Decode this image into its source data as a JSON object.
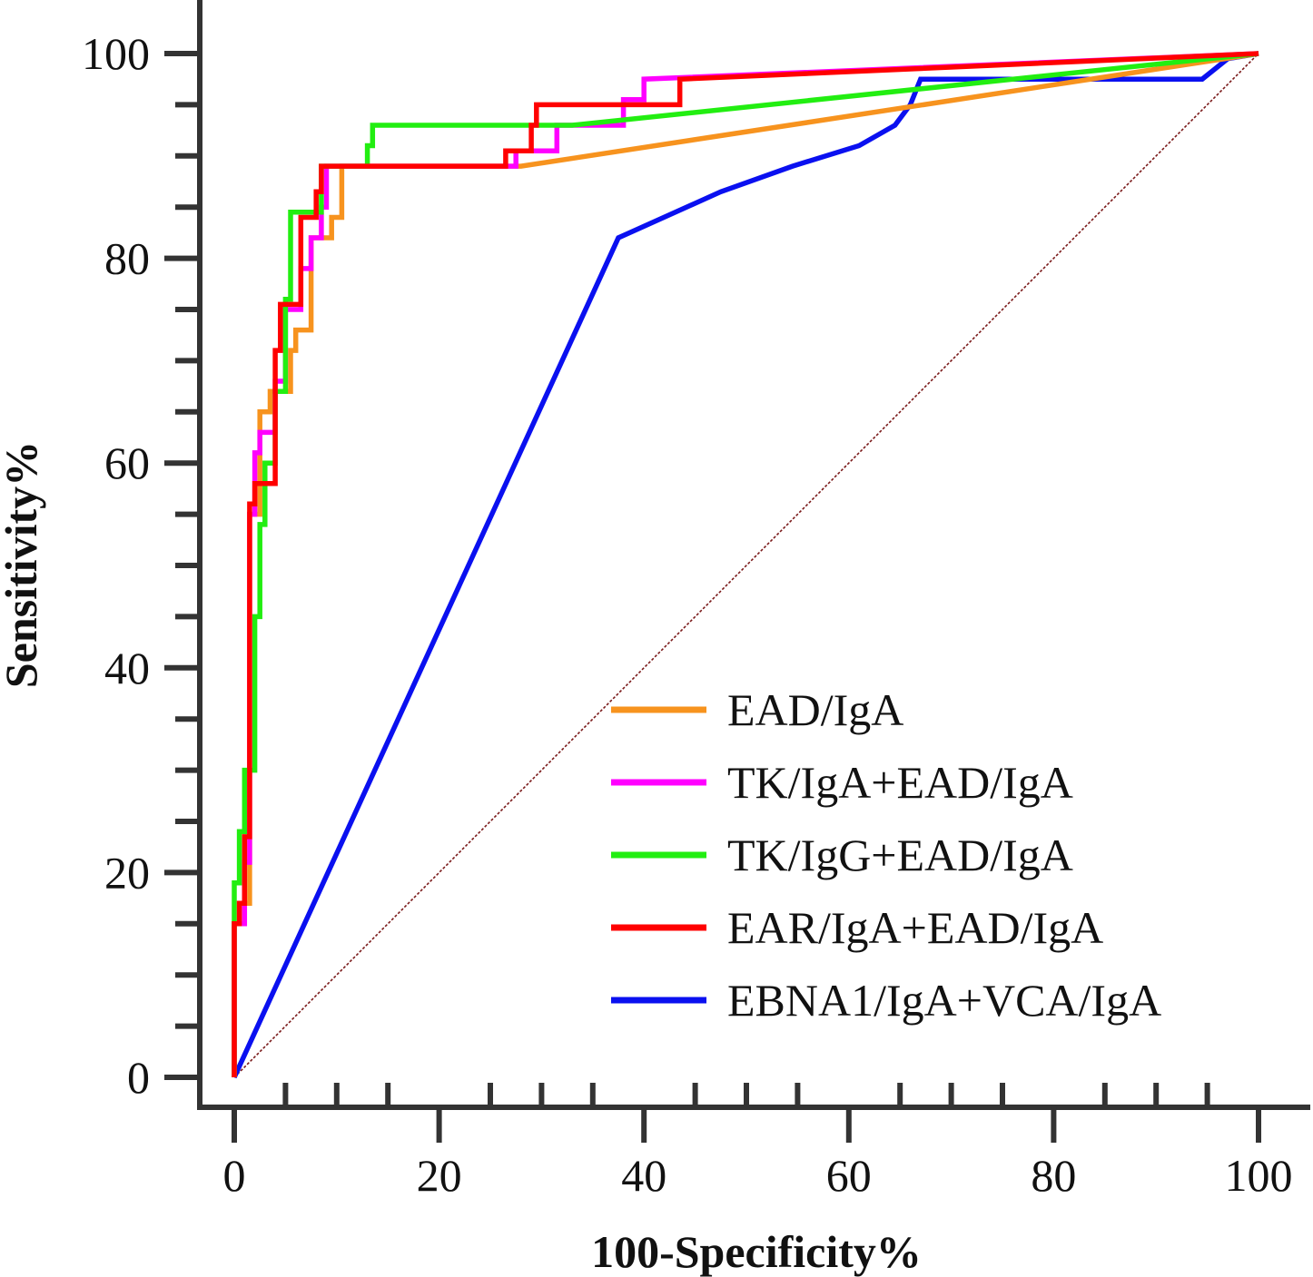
{
  "chart_data": {
    "type": "line",
    "title": "",
    "xlabel": "100-Specificity%",
    "ylabel": "Sensitivity%",
    "xlim": [
      0,
      100
    ],
    "ylim": [
      0,
      100
    ],
    "x_ticks": [
      0,
      20,
      40,
      60,
      80,
      100
    ],
    "y_ticks": [
      0,
      20,
      40,
      60,
      80,
      100
    ],
    "x_tick_labels": [
      "0",
      "20",
      "40",
      "60",
      "80",
      "100"
    ],
    "y_tick_labels": [
      "0",
      "20",
      "40",
      "60",
      "80",
      "100"
    ],
    "grid": false,
    "legend_position": "bottom-right",
    "reference_line": {
      "color": "#7a1a1a",
      "x": [
        0,
        100
      ],
      "y": [
        0,
        100
      ]
    },
    "series": [
      {
        "name": "EAD/IgA",
        "color": "#f7931e",
        "x": [
          0,
          0,
          0.5,
          0.5,
          1.5,
          1.5,
          2.5,
          2.5,
          3.5,
          3.5,
          5.5,
          5.5,
          6,
          6,
          7.5,
          7.5,
          9.5,
          9.5,
          10.5,
          10.5,
          28,
          100
        ],
        "y": [
          0,
          15,
          15,
          17,
          17,
          55,
          55,
          65,
          65,
          67,
          67,
          71,
          71,
          73,
          73,
          82,
          82,
          84,
          84,
          89,
          89,
          100
        ]
      },
      {
        "name": "TK/IgA+EAD/IgA",
        "color": "#ff00ff",
        "x": [
          0,
          0,
          1,
          1,
          1.5,
          1.5,
          2,
          2,
          2.5,
          2.5,
          4,
          4,
          5,
          5,
          6.5,
          6.5,
          7.5,
          7.5,
          8.5,
          8.5,
          9,
          9,
          27.5,
          27.5,
          31.5,
          31.5,
          38,
          38,
          40,
          40,
          100
        ],
        "y": [
          0,
          15,
          15,
          21,
          21,
          55,
          55,
          61,
          61,
          63,
          63,
          68,
          68,
          75,
          75,
          79,
          79,
          82,
          82,
          85,
          85,
          89,
          89,
          90.5,
          90.5,
          93,
          93,
          95.5,
          95.5,
          97.5,
          100
        ]
      },
      {
        "name": "TK/IgG+EAD/IgA",
        "color": "#22ee11",
        "x": [
          0,
          0,
          0.5,
          0.5,
          1,
          1,
          2,
          2,
          2.5,
          2.5,
          3,
          3,
          4,
          4,
          5,
          5,
          5.5,
          5.5,
          8.5,
          8.5,
          13,
          13,
          13.5,
          13.5,
          33,
          100
        ],
        "y": [
          0,
          19,
          19,
          24,
          24,
          30,
          30,
          45,
          45,
          54,
          54,
          60,
          60,
          67,
          67,
          76,
          76,
          84.5,
          84.5,
          89,
          89,
          91,
          91,
          93,
          93,
          100
        ]
      },
      {
        "name": "EAR/IgA+EAD/IgA",
        "color": "#ff0000",
        "x": [
          0,
          0,
          0.5,
          0.5,
          1,
          1,
          1.5,
          1.5,
          2,
          2,
          4,
          4,
          4.5,
          4.5,
          6.5,
          6.5,
          8,
          8,
          8.5,
          8.5,
          26.5,
          26.5,
          29,
          29,
          29.5,
          29.5,
          43.5,
          43.5,
          100
        ],
        "y": [
          0,
          15,
          15,
          17,
          17,
          23.5,
          23.5,
          56,
          56,
          58,
          58,
          71,
          71,
          75.5,
          75.5,
          84,
          84,
          86.5,
          86.5,
          89,
          89,
          90.5,
          90.5,
          93,
          93,
          95,
          95,
          97.5,
          100
        ]
      },
      {
        "name": "EBNA1/IgA+VCA/IgA",
        "color": "#0a10f0",
        "x": [
          0,
          37.5,
          47.5,
          54.5,
          61,
          64.5,
          66,
          67,
          94.5,
          97,
          100
        ],
        "y": [
          0,
          82,
          86.5,
          89,
          91,
          93,
          95,
          97.5,
          97.5,
          99.5,
          100
        ]
      }
    ]
  }
}
